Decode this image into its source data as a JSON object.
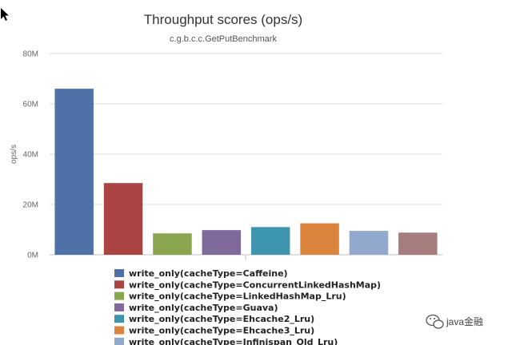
{
  "chart_data": {
    "type": "bar",
    "title": "Throughput scores (ops/s)",
    "subtitle": "c.g.b.c.c.GetPutBenchmark",
    "ylabel": "ops/s",
    "xlabel": "",
    "ylim": [
      0,
      80000000
    ],
    "yticks": [
      0,
      20000000,
      40000000,
      60000000,
      80000000
    ],
    "ytick_labels": [
      "0M",
      "20M",
      "40M",
      "60M",
      "80M"
    ],
    "grid": true,
    "legend_position": "bottom",
    "series": [
      {
        "name": "write_only(cacheType=Caffeine)",
        "value": 66000000,
        "color": "#4e72a7"
      },
      {
        "name": "write_only(cacheType=ConcurrentLinkedHashMap)",
        "value": 28500000,
        "color": "#a94442"
      },
      {
        "name": "write_only(cacheType=LinkedHashMap_Lru)",
        "value": 8500000,
        "color": "#89a54e"
      },
      {
        "name": "write_only(cacheType=Guava)",
        "value": 9800000,
        "color": "#80699b"
      },
      {
        "name": "write_only(cacheType=Ehcache2_Lru)",
        "value": 11000000,
        "color": "#3d96ae"
      },
      {
        "name": "write_only(cacheType=Ehcache3_Lru)",
        "value": 12500000,
        "color": "#db843d"
      },
      {
        "name": "write_only(cacheType=Infinispan_Old_Lru)",
        "value": 9500000,
        "color": "#92a8cd"
      },
      {
        "name": "",
        "value": 8800000,
        "color": "#a47d7c"
      }
    ]
  },
  "watermark": {
    "text": "java金融",
    "icon": "wechat-icon"
  }
}
